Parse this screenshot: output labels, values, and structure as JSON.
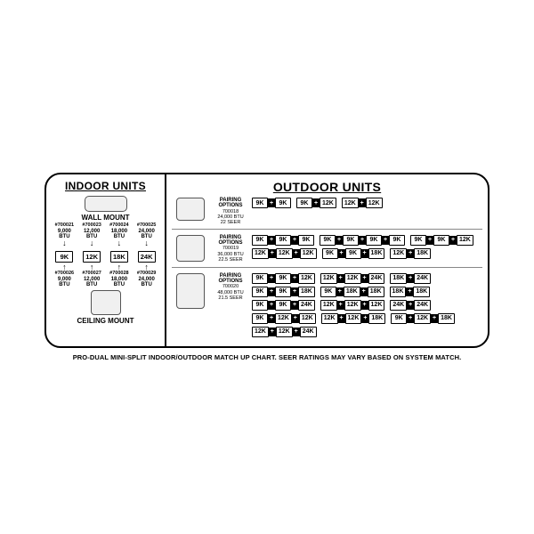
{
  "colors": {
    "border": "#000000",
    "bg": "#ffffff",
    "grille": "#aaaaaa"
  },
  "indoor": {
    "title": "INDOOR UNITS",
    "wall_label": "WALL MOUNT",
    "ceiling_label": "CEILING MOUNT",
    "wall": [
      {
        "sku": "#700021",
        "btu": "9,000",
        "btu2": "BTU",
        "cap": "9K"
      },
      {
        "sku": "#700023",
        "btu": "12,000",
        "btu2": "BTU",
        "cap": "12K"
      },
      {
        "sku": "#700024",
        "btu": "18,000",
        "btu2": "BTU",
        "cap": "18K"
      },
      {
        "sku": "#700025",
        "btu": "24,000",
        "btu2": "BTU",
        "cap": "24K"
      }
    ],
    "ceiling": [
      {
        "sku": "#700026",
        "btu": "9,000",
        "btu2": "BTU"
      },
      {
        "sku": "#700027",
        "btu": "12,000",
        "btu2": "BTU"
      },
      {
        "sku": "#700028",
        "btu": "18,000",
        "btu2": "BTU"
      },
      {
        "sku": "#700029",
        "btu": "24,000",
        "btu2": "BTU"
      }
    ]
  },
  "outdoor": {
    "title": "OUTDOOR UNITS",
    "pairing_label": "PAIRING OPTIONS",
    "units": [
      {
        "size": "sm",
        "sku": "700018",
        "btu": "24,000 BTU",
        "seer": "22 SEER",
        "combos": [
          [
            "9K",
            "9K"
          ],
          [
            "9K",
            "12K"
          ],
          [
            "12K",
            "12K"
          ]
        ]
      },
      {
        "size": "med",
        "sku": "700019",
        "btu": "36,000 BTU",
        "seer": "22.5 SEER",
        "combos": [
          [
            "9K",
            "9K",
            "9K"
          ],
          [
            "9K",
            "9K",
            "9K",
            "9K"
          ],
          [
            "9K",
            "9K",
            "12K"
          ],
          [
            "12K",
            "12K",
            "12K"
          ],
          [
            "9K",
            "9K",
            "18K"
          ],
          [
            "12K",
            "18K"
          ]
        ]
      },
      {
        "size": "lg",
        "sku": "700020",
        "btu": "48,000 BTU",
        "seer": "21.5 SEER",
        "combos": [
          [
            "9K",
            "9K",
            "12K"
          ],
          [
            "12K",
            "12K",
            "24K"
          ],
          [
            "18K",
            "24K"
          ],
          [
            "9K",
            "9K",
            "18K"
          ],
          [
            "9K",
            "18K",
            "18K"
          ],
          [
            "18K",
            "18K"
          ],
          [
            "9K",
            "9K",
            "24K"
          ],
          [
            "12K",
            "12K",
            "12K"
          ],
          [
            "24K",
            "24K"
          ],
          [
            "9K",
            "12K",
            "12K"
          ],
          [
            "12K",
            "12K",
            "18K"
          ],
          [
            "9K",
            "12K",
            "18K"
          ],
          [
            "12K",
            "12K",
            "24K"
          ]
        ]
      }
    ]
  },
  "footnote": "PRO-DUAL MINI-SPLIT INDOOR/OUTDOOR MATCH UP CHART.  SEER RATINGS MAY VARY BASED ON SYSTEM MATCH."
}
